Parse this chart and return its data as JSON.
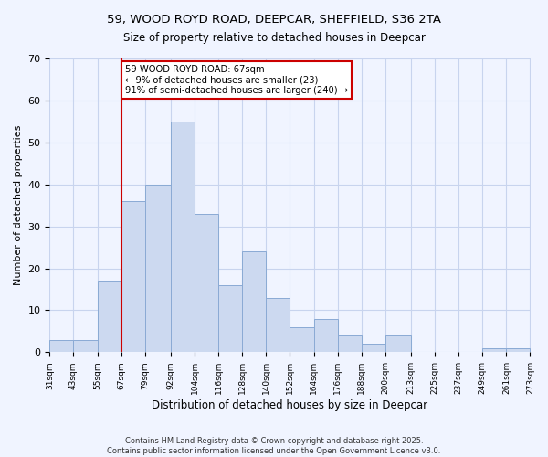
{
  "title_line1": "59, WOOD ROYD ROAD, DEEPCAR, SHEFFIELD, S36 2TA",
  "title_line2": "Size of property relative to detached houses in Deepcar",
  "xlabel": "Distribution of detached houses by size in Deepcar",
  "ylabel": "Number of detached properties",
  "bar_color": "#ccd9f0",
  "bar_edge_color": "#8aaad4",
  "vline_x": 67,
  "vline_color": "#cc0000",
  "annotation_line1": "59 WOOD ROYD ROAD: 67sqm",
  "annotation_line2": "← 9% of detached houses are smaller (23)",
  "annotation_line3": "91% of semi-detached houses are larger (240) →",
  "annotation_box_color": "#ffffff",
  "annotation_box_edge": "#cc0000",
  "bin_edges": [
    31,
    43,
    55,
    67,
    79,
    92,
    104,
    116,
    128,
    140,
    152,
    164,
    176,
    188,
    200,
    213,
    225,
    237,
    249,
    261,
    273
  ],
  "bar_heights": [
    3,
    3,
    17,
    36,
    40,
    55,
    33,
    16,
    24,
    13,
    6,
    8,
    4,
    2,
    4,
    0,
    0,
    0,
    1,
    1
  ],
  "ylim": [
    0,
    70
  ],
  "yticks": [
    0,
    10,
    20,
    30,
    40,
    50,
    60,
    70
  ],
  "background_color": "#f0f4ff",
  "grid_color": "#c8d4ee",
  "footer_line1": "Contains HM Land Registry data © Crown copyright and database right 2025.",
  "footer_line2": "Contains public sector information licensed under the Open Government Licence v3.0."
}
